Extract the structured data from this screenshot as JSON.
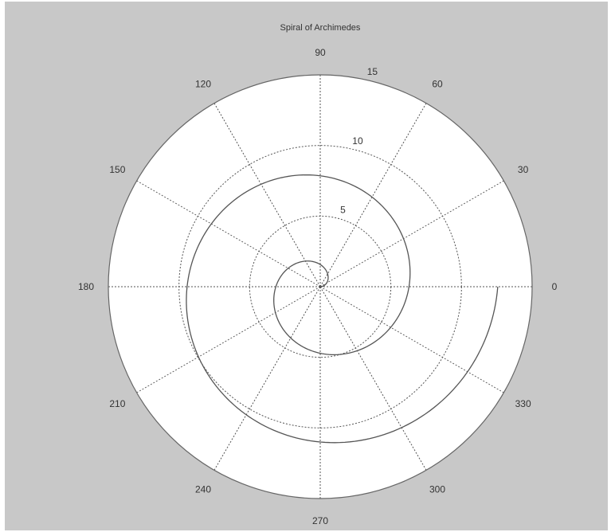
{
  "chart_data": {
    "type": "line",
    "coordinate_system": "polar",
    "title": "Spiral of Archimedes",
    "theta_unit": "degrees",
    "angle_ticks": [
      "0",
      "30",
      "60",
      "90",
      "120",
      "150",
      "180",
      "210",
      "240",
      "270",
      "300",
      "330"
    ],
    "radial_ticks": [
      "5",
      "10",
      "15"
    ],
    "rlim": [
      0,
      15
    ],
    "grid": true,
    "series": [
      {
        "equation": "r = theta (radians)",
        "theta_range_radians": [
          0,
          12.566
        ],
        "r_range": [
          0,
          12.566
        ],
        "color": "#555555",
        "style": "solid"
      }
    ]
  },
  "colors": {
    "figure_background": "#c8c8c8",
    "axes_background": "#ffffff",
    "grid": "#555555",
    "outline": "#666666"
  }
}
